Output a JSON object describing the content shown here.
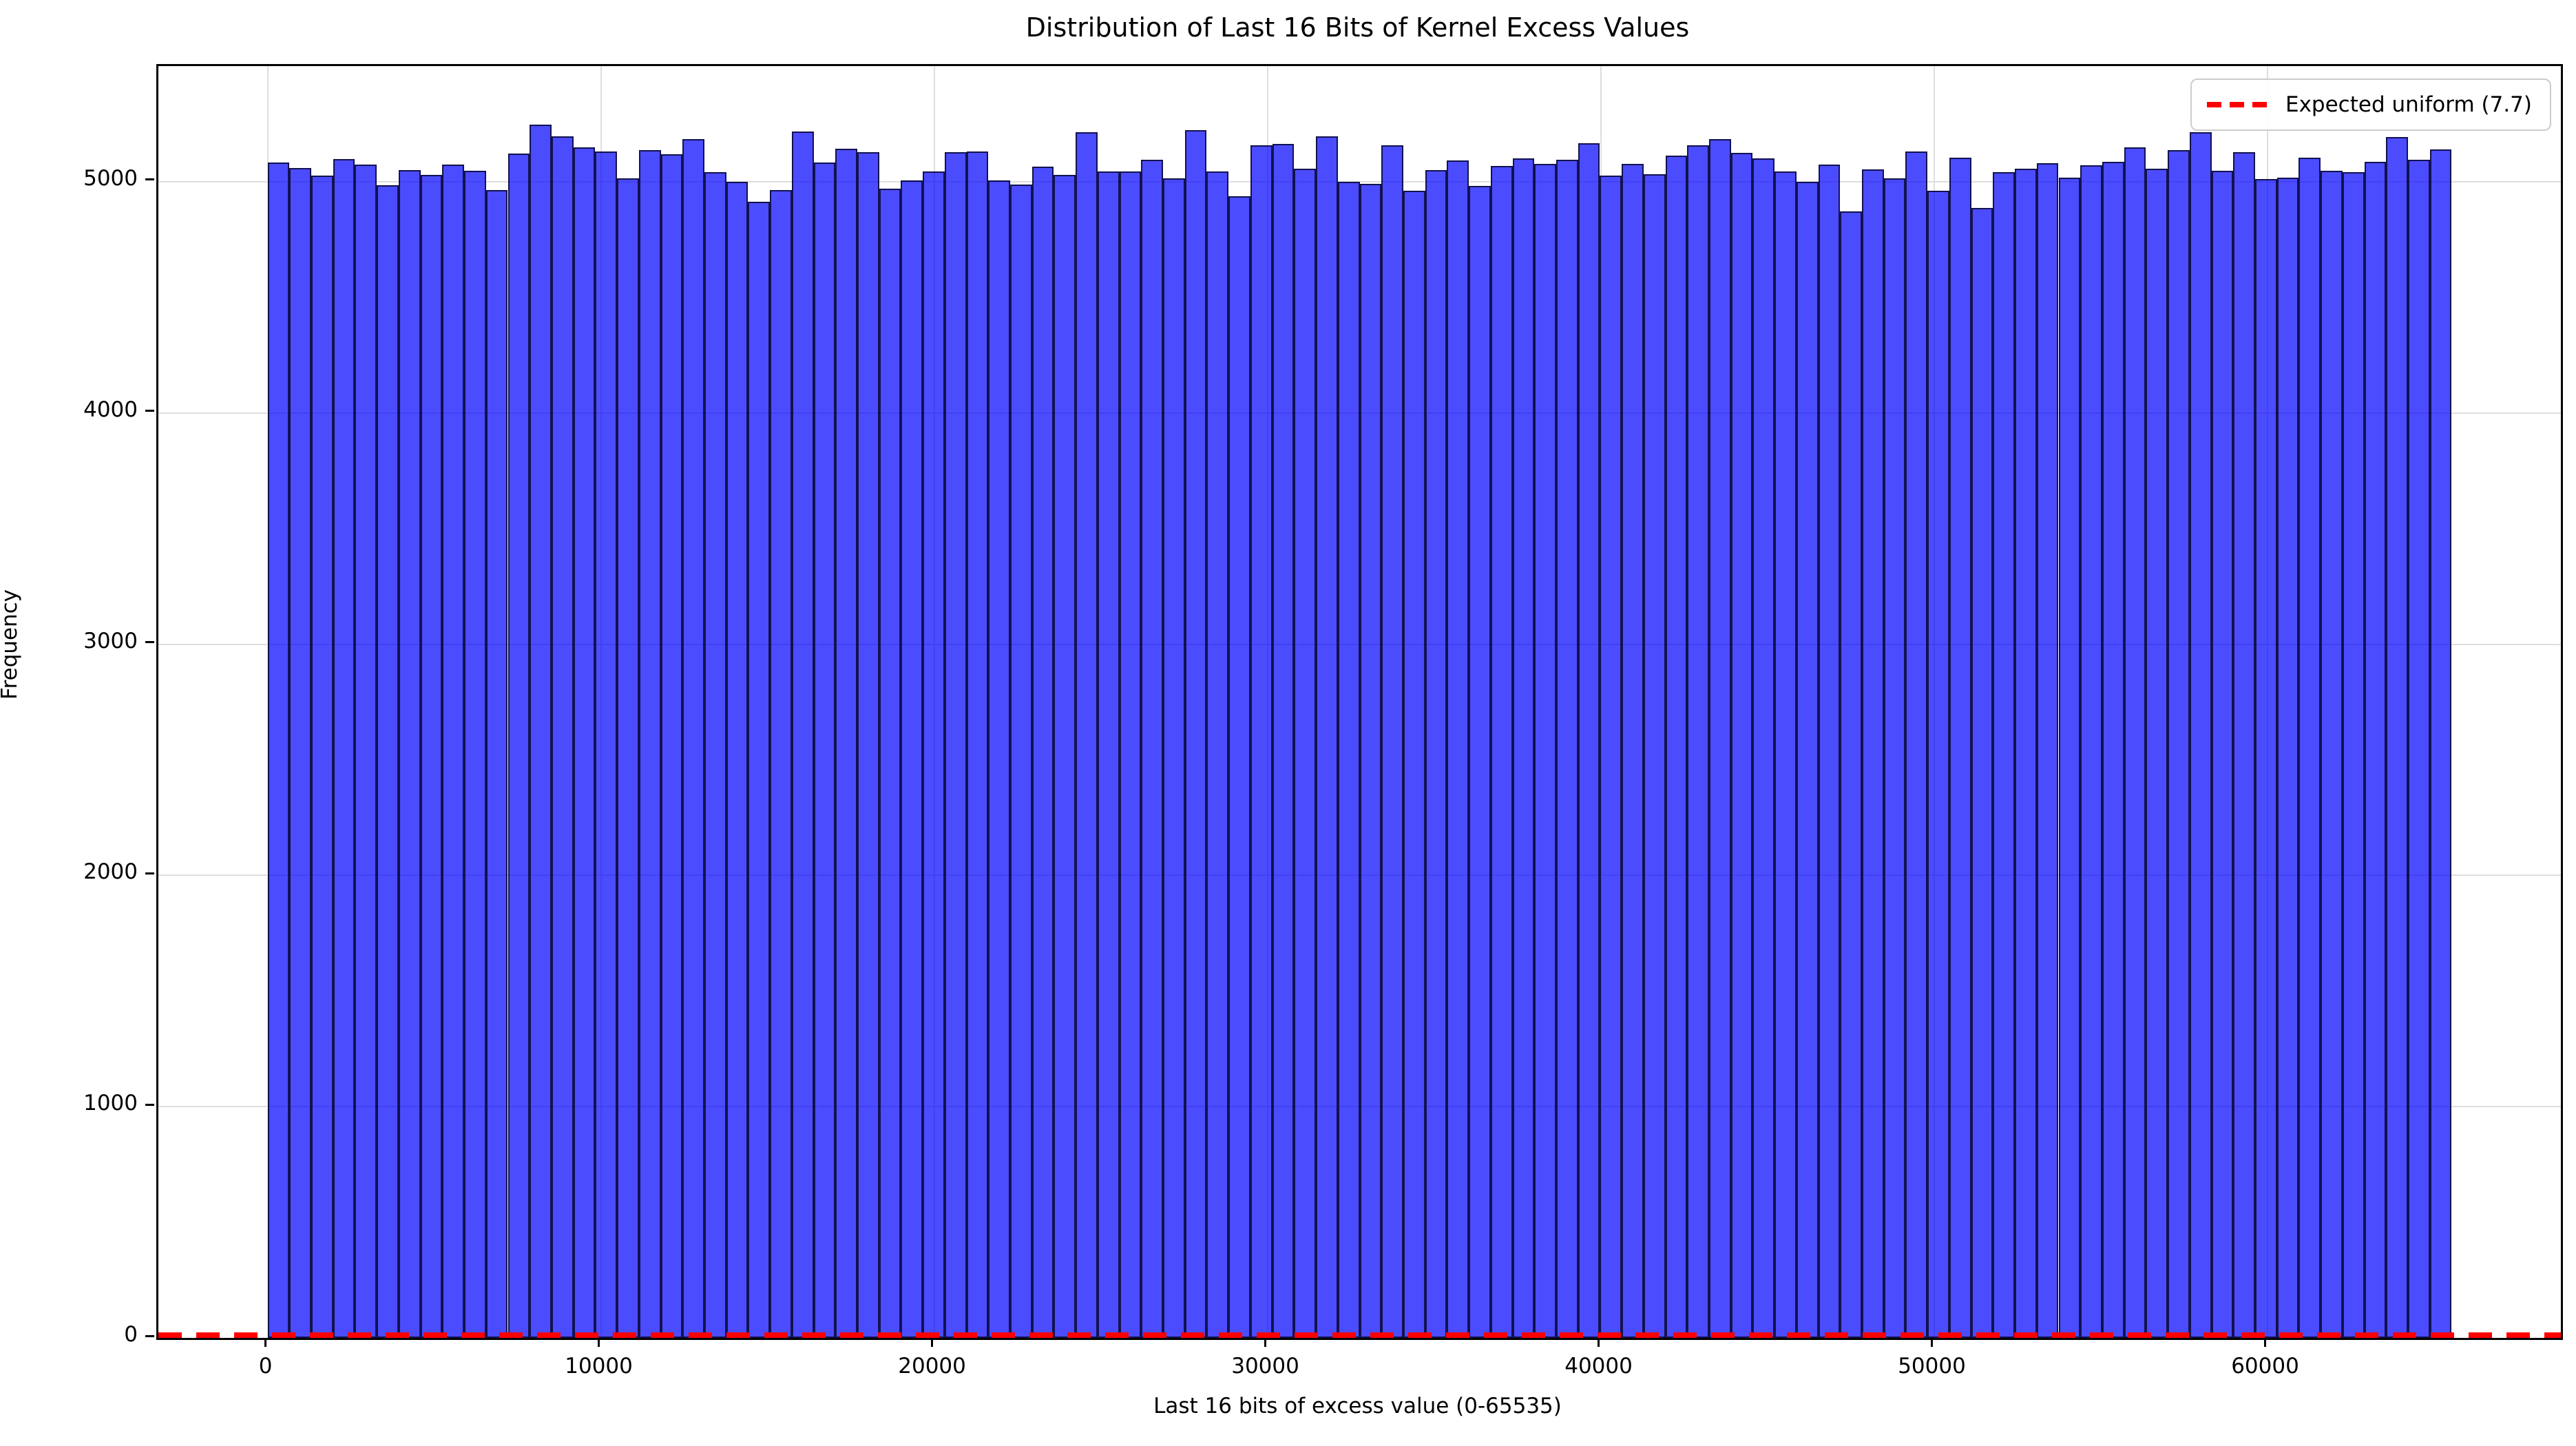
{
  "chart_data": {
    "type": "bar",
    "subtype": "histogram",
    "title": "Distribution of Last 16 Bits of Kernel Excess Values",
    "xlabel": "Last 16 bits of excess value (0-65535)",
    "ylabel": "Frequency",
    "legend": {
      "label": "Expected uniform (7.7)",
      "line_color": "#ff0000",
      "line_style": "dashed",
      "position": "upper right"
    },
    "expected_uniform_per_value": 7.7,
    "bin_count": 100,
    "bin_range": [
      0,
      65535
    ],
    "values": [
      5084,
      5059,
      5027,
      5098,
      5073,
      4986,
      5051,
      5029,
      5074,
      5047,
      4964,
      5123,
      5247,
      5196,
      5150,
      5132,
      5015,
      5136,
      5118,
      5184,
      5040,
      5001,
      4913,
      4963,
      5217,
      5084,
      5143,
      5129,
      4970,
      5007,
      5043,
      5129,
      5132,
      5005,
      4989,
      5065,
      5029,
      5213,
      5045,
      5045,
      5096,
      5014,
      5223,
      5043,
      4938,
      5158,
      5164,
      5057,
      5195,
      4999,
      4990,
      5157,
      4960,
      5049,
      5091,
      4983,
      5068,
      5100,
      5078,
      5094,
      5166,
      5026,
      5077,
      5032,
      5114,
      5159,
      5183,
      5126,
      5102,
      5044,
      5001,
      5073,
      4871,
      5052,
      5016,
      5130,
      4960,
      5103,
      4887,
      5042,
      5055,
      5079,
      5019,
      5072,
      5087,
      5150,
      5057,
      5138,
      5215,
      5047,
      5129,
      5012,
      5017,
      5103,
      5048,
      5040,
      5087,
      5194,
      5096,
      5141
    ],
    "x_ticks": [
      0,
      10000,
      20000,
      30000,
      40000,
      50000,
      60000
    ],
    "y_ticks": [
      0,
      1000,
      2000,
      3000,
      4000,
      5000
    ],
    "xlim": [
      -3277,
      68812
    ],
    "ylim": [
      0,
      5500
    ],
    "grid": true,
    "colors": {
      "bar_fill": "rgba(0,0,255,0.7)",
      "bar_edge": "rgba(2,2,30,0.78)",
      "grid": "#dedede",
      "expected_line": "#ff0000",
      "background": "#ffffff"
    }
  }
}
